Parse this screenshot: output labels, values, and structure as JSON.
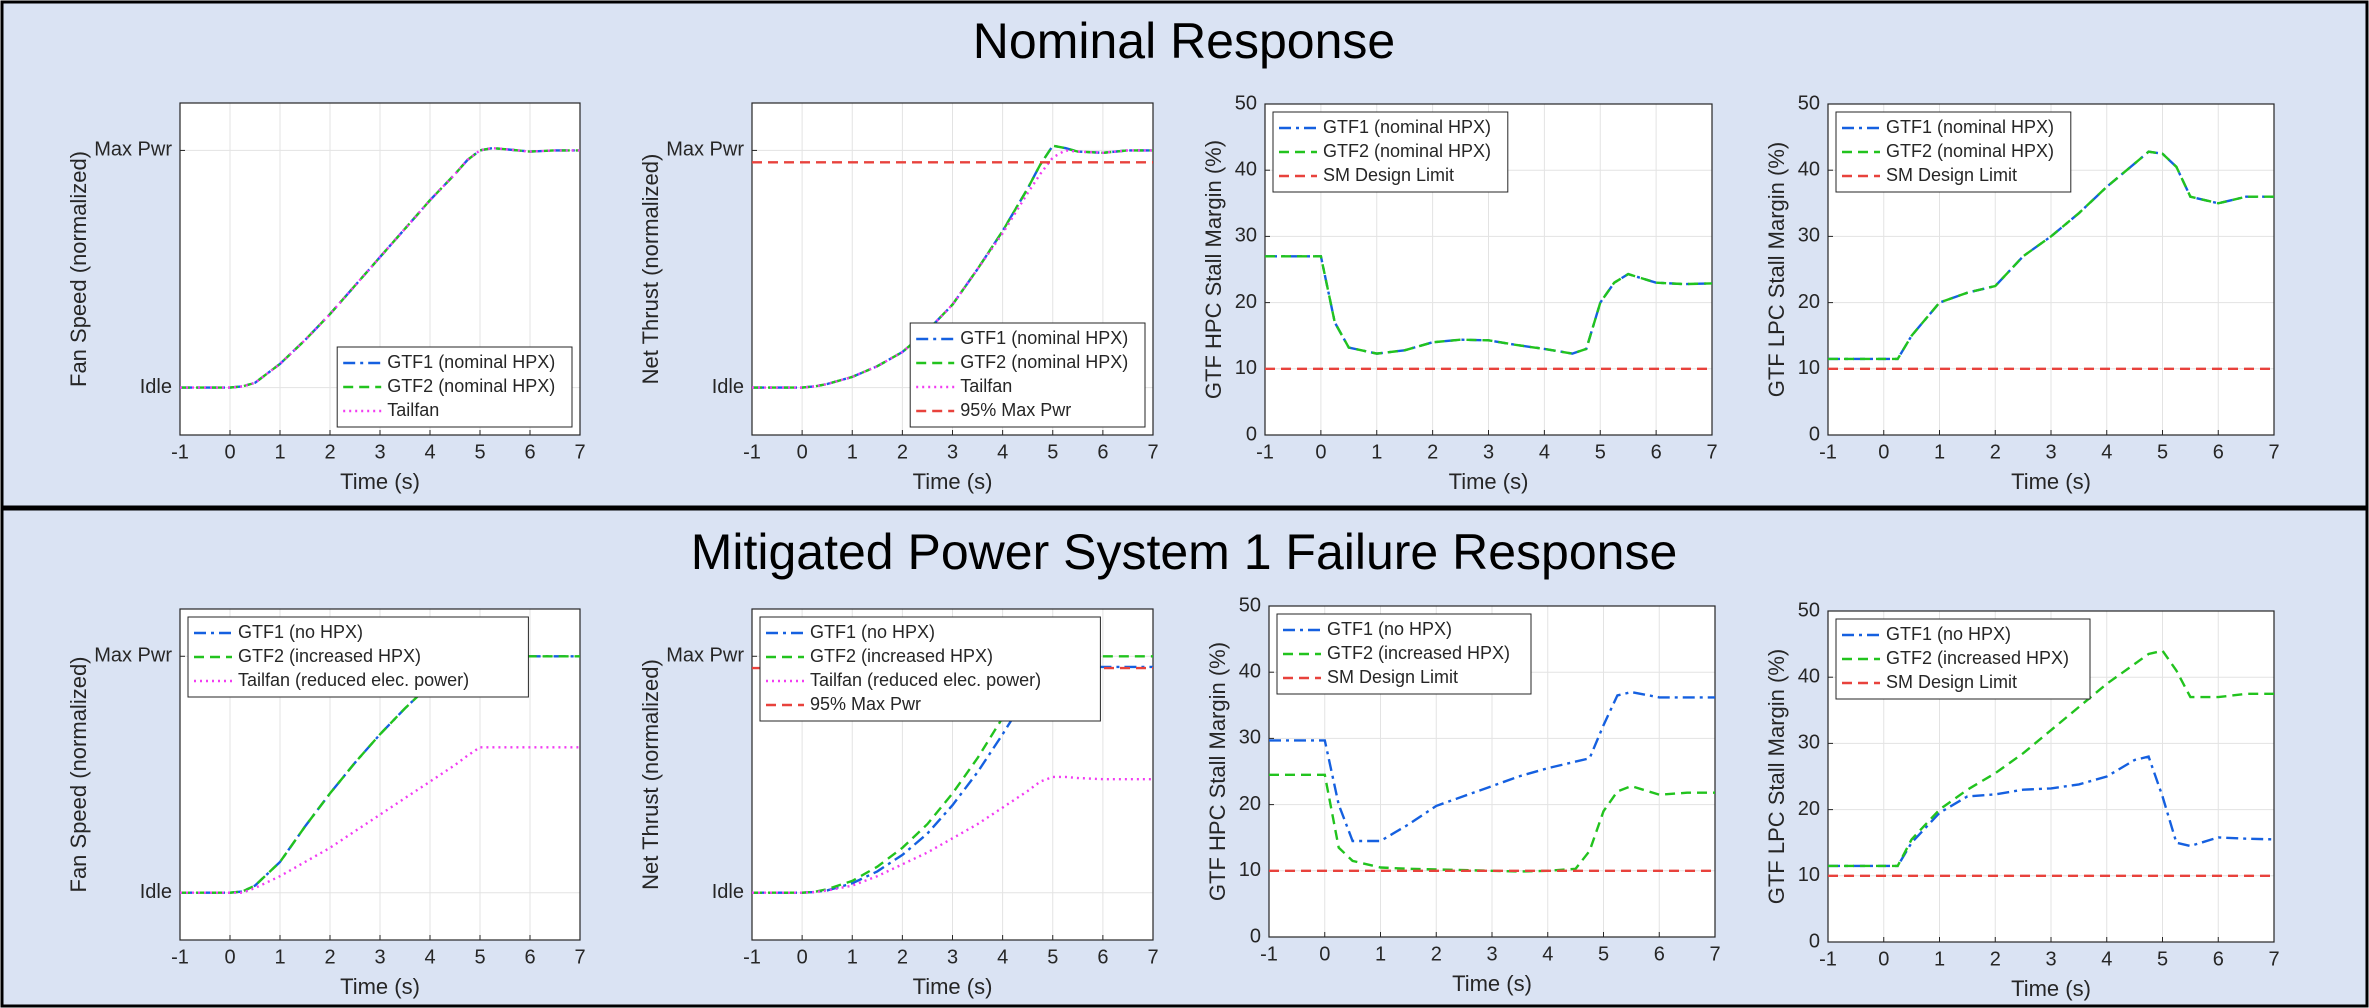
{
  "panels": [
    {
      "title": "Nominal Response"
    },
    {
      "title": "Mitigated Power System 1 Failure Response"
    }
  ],
  "chart_data": [
    {
      "type": "line",
      "ylabel": "Fan Speed (normalized)",
      "xlabel": "Time (s)",
      "xlim": [
        -1,
        7
      ],
      "xticks": [
        -1,
        0,
        1,
        2,
        3,
        4,
        5,
        6,
        7
      ],
      "ylim": [
        -0.2,
        1.2
      ],
      "yticks": [
        {
          "value": 0,
          "label": "Idle"
        },
        {
          "value": 1,
          "label": "Max Pwr"
        }
      ],
      "grid": true,
      "legend": "lower right",
      "x": [
        -1,
        0,
        0.25,
        0.5,
        1,
        1.5,
        2,
        2.5,
        3,
        3.5,
        4,
        4.5,
        4.75,
        5,
        5.25,
        5.5,
        6,
        6.5,
        7
      ],
      "series": [
        {
          "name": "GTF1 (nominal HPX)",
          "color": "#1560e0",
          "dash": "dashdot",
          "values": [
            0,
            0,
            0.005,
            0.02,
            0.1,
            0.2,
            0.31,
            0.43,
            0.55,
            0.67,
            0.79,
            0.9,
            0.96,
            1.0,
            1.01,
            1.005,
            0.995,
            1.0,
            1.0
          ]
        },
        {
          "name": "GTF2 (nominal HPX)",
          "color": "#22c31e",
          "dash": "dashed",
          "values": [
            0,
            0,
            0.005,
            0.02,
            0.1,
            0.2,
            0.31,
            0.43,
            0.55,
            0.67,
            0.79,
            0.9,
            0.96,
            1.0,
            1.01,
            1.005,
            0.995,
            1.0,
            1.0
          ]
        },
        {
          "name": "Tailfan",
          "color": "#f23cf2",
          "dash": "dotted",
          "values": [
            0,
            0,
            0.005,
            0.02,
            0.1,
            0.2,
            0.31,
            0.43,
            0.55,
            0.67,
            0.79,
            0.9,
            0.96,
            1.0,
            1.01,
            1.005,
            0.995,
            1.0,
            1.0
          ]
        }
      ]
    },
    {
      "type": "line",
      "ylabel": "Net Thrust (normalized)",
      "xlabel": "Time (s)",
      "xlim": [
        -1,
        7
      ],
      "xticks": [
        -1,
        0,
        1,
        2,
        3,
        4,
        5,
        6,
        7
      ],
      "ylim": [
        -0.2,
        1.2
      ],
      "yticks": [
        {
          "value": 0,
          "label": "Idle"
        },
        {
          "value": 1,
          "label": "Max Pwr"
        }
      ],
      "grid": true,
      "legend": "lower right",
      "x": [
        -1,
        0,
        0.25,
        0.5,
        1,
        1.5,
        2,
        2.5,
        3,
        3.5,
        4,
        4.5,
        4.75,
        5,
        5.25,
        5.5,
        6,
        6.5,
        7
      ],
      "series": [
        {
          "name": "GTF1 (nominal HPX)",
          "color": "#1560e0",
          "dash": "dashdot",
          "values": [
            0,
            0,
            0.005,
            0.015,
            0.045,
            0.09,
            0.15,
            0.24,
            0.35,
            0.5,
            0.66,
            0.84,
            0.94,
            1.02,
            1.01,
            0.995,
            0.99,
            1.0,
            1.0
          ]
        },
        {
          "name": "GTF2 (nominal HPX)",
          "color": "#22c31e",
          "dash": "dashed",
          "values": [
            0,
            0,
            0.005,
            0.015,
            0.045,
            0.09,
            0.15,
            0.24,
            0.35,
            0.5,
            0.66,
            0.84,
            0.94,
            1.02,
            1.01,
            0.995,
            0.99,
            1.0,
            1.0
          ]
        },
        {
          "name": "Tailfan",
          "color": "#f23cf2",
          "dash": "dotted",
          "values": [
            0,
            0,
            0.005,
            0.015,
            0.045,
            0.09,
            0.15,
            0.24,
            0.35,
            0.5,
            0.65,
            0.82,
            0.9,
            0.97,
            1.0,
            0.995,
            0.99,
            1.0,
            1.0
          ]
        },
        {
          "name": "95% Max Pwr",
          "color": "#e8423c",
          "dash": "dashed",
          "values": [
            0.95,
            0.95,
            0.95,
            0.95,
            0.95,
            0.95,
            0.95,
            0.95,
            0.95,
            0.95,
            0.95,
            0.95,
            0.95,
            0.95,
            0.95,
            0.95,
            0.95,
            0.95,
            0.95
          ]
        }
      ]
    },
    {
      "type": "line",
      "ylabel": "GTF HPC Stall Margin (%)",
      "xlabel": "Time (s)",
      "xlim": [
        -1,
        7
      ],
      "xticks": [
        -1,
        0,
        1,
        2,
        3,
        4,
        5,
        6,
        7
      ],
      "ylim": [
        0,
        50
      ],
      "yticks": [
        0,
        10,
        20,
        30,
        40,
        50
      ],
      "grid": true,
      "legend": "upper left",
      "x": [
        -1,
        0,
        0.25,
        0.5,
        1,
        1.5,
        2,
        2.5,
        3,
        3.5,
        4,
        4.5,
        4.75,
        5,
        5.25,
        5.5,
        6,
        6.5,
        7
      ],
      "series": [
        {
          "name": "GTF1 (nominal HPX)",
          "color": "#1560e0",
          "dash": "dashdot",
          "values": [
            27,
            27,
            17,
            13.2,
            12.3,
            12.8,
            14,
            14.4,
            14.3,
            13.6,
            13,
            12.3,
            13,
            20,
            23,
            24.3,
            23,
            22.8,
            22.9
          ]
        },
        {
          "name": "GTF2 (nominal HPX)",
          "color": "#22c31e",
          "dash": "dashed",
          "values": [
            27,
            27,
            17,
            13.2,
            12.3,
            12.8,
            14,
            14.4,
            14.3,
            13.6,
            13,
            12.3,
            13,
            20,
            23,
            24.3,
            23,
            22.8,
            22.9
          ]
        },
        {
          "name": "SM Design Limit",
          "color": "#e8423c",
          "dash": "dashed",
          "values": [
            10,
            10,
            10,
            10,
            10,
            10,
            10,
            10,
            10,
            10,
            10,
            10,
            10,
            10,
            10,
            10,
            10,
            10,
            10
          ]
        }
      ]
    },
    {
      "type": "line",
      "ylabel": "GTF LPC Stall Margin (%)",
      "xlabel": "Time (s)",
      "xlim": [
        -1,
        7
      ],
      "xticks": [
        -1,
        0,
        1,
        2,
        3,
        4,
        5,
        6,
        7
      ],
      "ylim": [
        0,
        50
      ],
      "yticks": [
        0,
        10,
        20,
        30,
        40,
        50
      ],
      "grid": true,
      "legend": "upper left",
      "x": [
        -1,
        0,
        0.25,
        0.5,
        1,
        1.5,
        2,
        2.5,
        3,
        3.5,
        4,
        4.5,
        4.75,
        5,
        5.25,
        5.5,
        6,
        6.5,
        7
      ],
      "series": [
        {
          "name": "GTF1 (nominal HPX)",
          "color": "#1560e0",
          "dash": "dashdot",
          "values": [
            11.5,
            11.5,
            11.5,
            15,
            20,
            21.5,
            22.5,
            27,
            30,
            33.5,
            37.5,
            41,
            42.8,
            42.5,
            40.5,
            36,
            35,
            36,
            36
          ]
        },
        {
          "name": "GTF2 (nominal HPX)",
          "color": "#22c31e",
          "dash": "dashed",
          "values": [
            11.5,
            11.5,
            11.5,
            15,
            20,
            21.5,
            22.5,
            27,
            30,
            33.5,
            37.5,
            41,
            42.8,
            42.5,
            40.5,
            36,
            35,
            36,
            36
          ]
        },
        {
          "name": "SM Design Limit",
          "color": "#e8423c",
          "dash": "dashed",
          "values": [
            10,
            10,
            10,
            10,
            10,
            10,
            10,
            10,
            10,
            10,
            10,
            10,
            10,
            10,
            10,
            10,
            10,
            10,
            10
          ]
        }
      ]
    },
    {
      "type": "line",
      "ylabel": "Fan Speed (normalized)",
      "xlabel": "Time (s)",
      "xlim": [
        -1,
        7
      ],
      "xticks": [
        -1,
        0,
        1,
        2,
        3,
        4,
        5,
        6,
        7
      ],
      "ylim": [
        -0.2,
        1.2
      ],
      "yticks": [
        {
          "value": 0,
          "label": "Idle"
        },
        {
          "value": 1,
          "label": "Max Pwr"
        }
      ],
      "grid": true,
      "legend": "upper left",
      "x": [
        -1,
        0,
        0.25,
        0.5,
        1,
        1.5,
        2,
        2.5,
        3,
        3.5,
        4,
        4.5,
        4.75,
        5,
        5.25,
        5.5,
        6,
        6.5,
        7
      ],
      "series": [
        {
          "name": "GTF1 (no HPX)",
          "color": "#1560e0",
          "dash": "dashdot",
          "values": [
            0,
            0,
            0.005,
            0.03,
            0.13,
            0.28,
            0.42,
            0.55,
            0.67,
            0.78,
            0.88,
            0.95,
            0.98,
            1.0,
            1.005,
            1.0,
            1.0,
            1.0,
            1.0
          ]
        },
        {
          "name": "GTF2 (increased HPX)",
          "color": "#22c31e",
          "dash": "dashed",
          "values": [
            0,
            0,
            0.005,
            0.03,
            0.13,
            0.28,
            0.42,
            0.55,
            0.67,
            0.78,
            0.88,
            0.95,
            0.98,
            1.0,
            1.005,
            1.0,
            1.0,
            1.0,
            1.0
          ]
        },
        {
          "name": "Tailfan (reduced elec. power)",
          "color": "#f23cf2",
          "dash": "dotted",
          "values": [
            0,
            0,
            0,
            0.02,
            0.07,
            0.13,
            0.19,
            0.26,
            0.33,
            0.4,
            0.47,
            0.54,
            0.58,
            0.615,
            0.615,
            0.615,
            0.615,
            0.615,
            0.615
          ]
        }
      ]
    },
    {
      "type": "line",
      "ylabel": "Net Thrust (normalized)",
      "xlabel": "Time (s)",
      "xlim": [
        -1,
        7
      ],
      "xticks": [
        -1,
        0,
        1,
        2,
        3,
        4,
        5,
        6,
        7
      ],
      "ylim": [
        -0.2,
        1.2
      ],
      "yticks": [
        {
          "value": 0,
          "label": "Idle"
        },
        {
          "value": 1,
          "label": "Max Pwr"
        }
      ],
      "grid": true,
      "legend": "upper left",
      "x": [
        -1,
        0,
        0.25,
        0.5,
        1,
        1.5,
        2,
        2.5,
        3,
        3.5,
        4,
        4.5,
        4.75,
        5,
        5.25,
        5.5,
        6,
        6.5,
        7
      ],
      "series": [
        {
          "name": "GTF1 (no HPX)",
          "color": "#1560e0",
          "dash": "dashdot",
          "values": [
            0,
            0,
            0.003,
            0.01,
            0.04,
            0.09,
            0.16,
            0.25,
            0.37,
            0.51,
            0.67,
            0.84,
            0.92,
            0.965,
            0.96,
            0.955,
            0.955,
            0.955,
            0.955
          ]
        },
        {
          "name": "GTF2 (increased HPX)",
          "color": "#22c31e",
          "dash": "dashed",
          "values": [
            0,
            0,
            0.004,
            0.015,
            0.05,
            0.11,
            0.19,
            0.29,
            0.42,
            0.57,
            0.74,
            0.92,
            0.99,
            1.03,
            1.02,
            1.0,
            1.0,
            1.0,
            1.0
          ]
        },
        {
          "name": "Tailfan (reduced elec. power)",
          "color": "#f23cf2",
          "dash": "dotted",
          "values": [
            0,
            0,
            0.002,
            0.01,
            0.03,
            0.07,
            0.12,
            0.17,
            0.23,
            0.29,
            0.36,
            0.43,
            0.47,
            0.49,
            0.49,
            0.485,
            0.48,
            0.48,
            0.48
          ]
        },
        {
          "name": "95% Max Pwr",
          "color": "#e8423c",
          "dash": "dashed",
          "values": [
            0.95,
            0.95,
            0.95,
            0.95,
            0.95,
            0.95,
            0.95,
            0.95,
            0.95,
            0.95,
            0.95,
            0.95,
            0.95,
            0.95,
            0.95,
            0.95,
            0.95,
            0.95,
            0.95
          ]
        }
      ]
    },
    {
      "type": "line",
      "ylabel": "GTF HPC Stall Margin (%)",
      "xlabel": "Time (s)",
      "xlim": [
        -1,
        7
      ],
      "xticks": [
        -1,
        0,
        1,
        2,
        3,
        4,
        5,
        6,
        7
      ],
      "ylim": [
        0,
        50
      ],
      "yticks": [
        0,
        10,
        20,
        30,
        40,
        50
      ],
      "grid": true,
      "legend": "upper left",
      "x": [
        -1,
        0,
        0.25,
        0.5,
        1,
        1.5,
        2,
        2.5,
        3,
        3.5,
        4,
        4.5,
        4.75,
        5,
        5.25,
        5.5,
        6,
        6.5,
        7
      ],
      "series": [
        {
          "name": "GTF1 (no HPX)",
          "color": "#1560e0",
          "dash": "dashdot",
          "values": [
            29.7,
            29.7,
            20,
            14.5,
            14.5,
            17,
            19.8,
            21.3,
            22.8,
            24.3,
            25.5,
            26.5,
            27,
            32,
            36.5,
            37,
            36.2,
            36.2,
            36.2
          ]
        },
        {
          "name": "GTF2 (increased HPX)",
          "color": "#22c31e",
          "dash": "dashed",
          "values": [
            24.5,
            24.5,
            13.5,
            11.5,
            10.5,
            10.3,
            10.2,
            10.1,
            10,
            9.9,
            10,
            10.3,
            13,
            19,
            22,
            22.8,
            21.5,
            21.8,
            21.8
          ]
        },
        {
          "name": "SM Design Limit",
          "color": "#e8423c",
          "dash": "dashed",
          "values": [
            10,
            10,
            10,
            10,
            10,
            10,
            10,
            10,
            10,
            10,
            10,
            10,
            10,
            10,
            10,
            10,
            10,
            10,
            10
          ]
        }
      ]
    },
    {
      "type": "line",
      "ylabel": "GTF LPC Stall Margin (%)",
      "xlabel": "Time (s)",
      "xlim": [
        -1,
        7
      ],
      "xticks": [
        -1,
        0,
        1,
        2,
        3,
        4,
        5,
        6,
        7
      ],
      "ylim": [
        0,
        50
      ],
      "yticks": [
        0,
        10,
        20,
        30,
        40,
        50
      ],
      "grid": true,
      "legend": "upper left",
      "x": [
        -1,
        0,
        0.25,
        0.5,
        1,
        1.5,
        2,
        2.5,
        3,
        3.5,
        4,
        4.5,
        4.75,
        5,
        5.25,
        5.5,
        6,
        6.5,
        7
      ],
      "series": [
        {
          "name": "GTF1 (no HPX)",
          "color": "#1560e0",
          "dash": "dashdot",
          "values": [
            11.5,
            11.5,
            11.5,
            15,
            19.5,
            22,
            22.3,
            23,
            23.2,
            23.8,
            25,
            27.5,
            28,
            22,
            15,
            14.5,
            15.8,
            15.6,
            15.5
          ]
        },
        {
          "name": "GTF2 (increased HPX)",
          "color": "#22c31e",
          "dash": "dashed",
          "values": [
            11.5,
            11.5,
            11.5,
            15.5,
            20,
            23,
            25.5,
            28.5,
            32,
            35.5,
            39,
            42,
            43.5,
            44,
            41,
            37,
            37,
            37.5,
            37.5
          ]
        },
        {
          "name": "SM Design Limit",
          "color": "#e8423c",
          "dash": "dashed",
          "values": [
            10,
            10,
            10,
            10,
            10,
            10,
            10,
            10,
            10,
            10,
            10,
            10,
            10,
            10,
            10,
            10,
            10,
            10,
            10
          ]
        }
      ]
    }
  ]
}
